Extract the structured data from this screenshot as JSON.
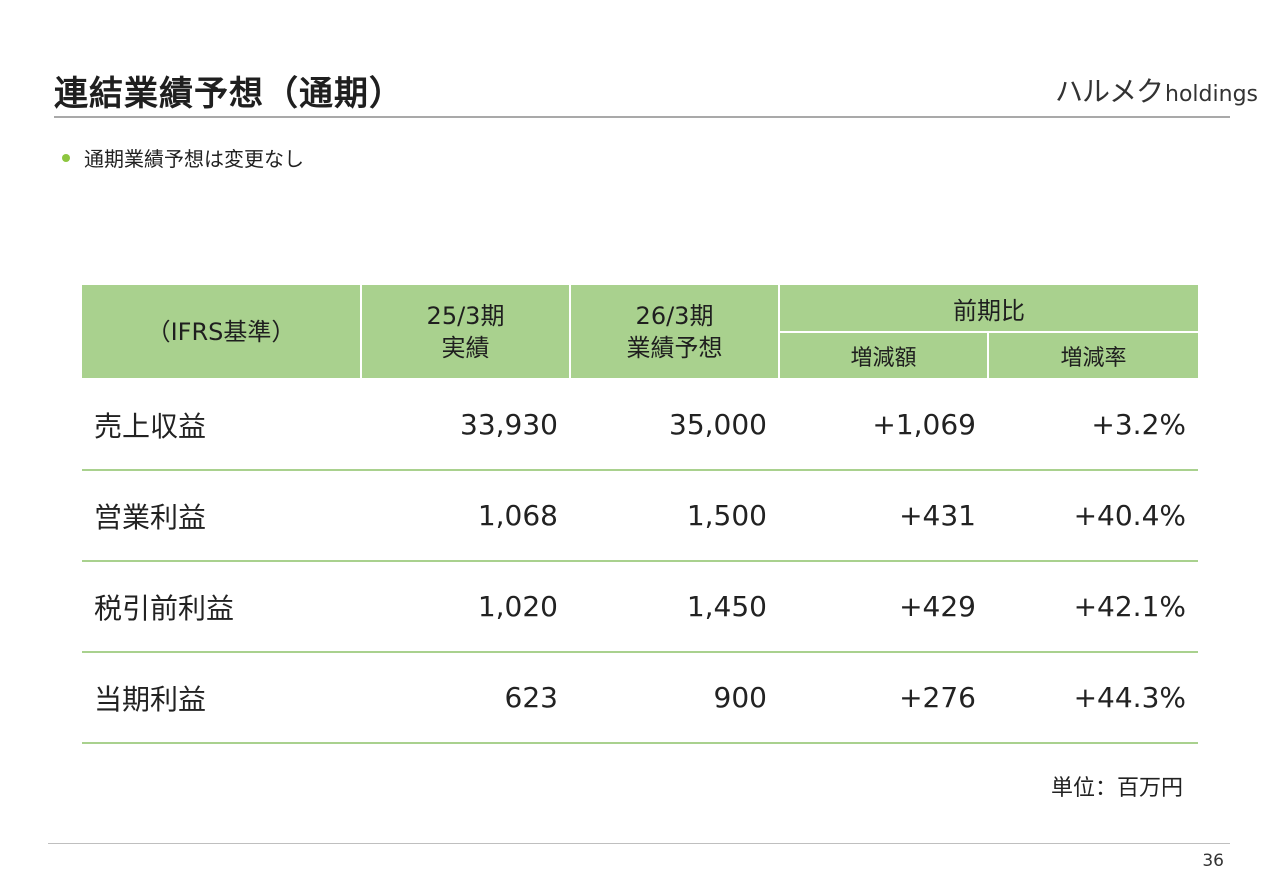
{
  "title": "連結業績予想（通期）",
  "logo": {
    "jp": "ハルメク",
    "en": "holdings"
  },
  "bullet": "通期業績予想は変更なし",
  "table": {
    "header": {
      "basis": "（IFRS基準）",
      "col1_line1": "25/3期",
      "col1_line2": "実績",
      "col2_line1": "26/3期",
      "col2_line2": "業績予想",
      "group": "前期比",
      "sub1": "増減額",
      "sub2": "増減率"
    },
    "rows": [
      {
        "label": "売上収益",
        "actual": "33,930",
        "forecast": "35,000",
        "change": "+1,069",
        "rate": "+3.2%"
      },
      {
        "label": "営業利益",
        "actual": "1,068",
        "forecast": "1,500",
        "change": "+431",
        "rate": "+40.4%"
      },
      {
        "label": "税引前利益",
        "actual": "1,020",
        "forecast": "1,450",
        "change": "+429",
        "rate": "+42.1%"
      },
      {
        "label": "当期利益",
        "actual": "623",
        "forecast": "900",
        "change": "+276",
        "rate": "+44.3%"
      }
    ]
  },
  "unit": "単位：百万円",
  "page_number": "36",
  "colors": {
    "header_fill": "#a9d18e",
    "row_rule": "#a9d18e",
    "bullet": "#8dc63f"
  }
}
